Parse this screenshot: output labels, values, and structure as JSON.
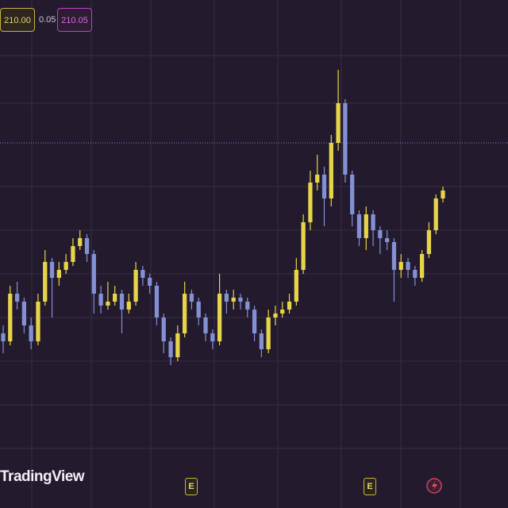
{
  "header": {
    "bid": "210.00",
    "spread": "0.05",
    "ask": "210.05"
  },
  "chart_data": {
    "type": "candlestick",
    "open": [
      186.0,
      185.0,
      191.0,
      190.0,
      187.0,
      185.0,
      190.0,
      195.0,
      193.0,
      194.0,
      195.0,
      197.0,
      198.0,
      196.0,
      191.0,
      189.5,
      190.0,
      191.0,
      189.0,
      190.0,
      194.0,
      193.0,
      192.0,
      188.0,
      185.0,
      183.0,
      186.0,
      191.0,
      190.0,
      188.0,
      186.0,
      185.0,
      191.0,
      190.0,
      190.5,
      190.0,
      189.0,
      186.0,
      184.0,
      188.0,
      188.5,
      189.0,
      190.0,
      194.0,
      200.0,
      205.0,
      206.0,
      203.0,
      210.0,
      215.0,
      206.0,
      201.0,
      198.0,
      201.0,
      199.0,
      198.0,
      197.5,
      194.0,
      195.0,
      194.0,
      193.0,
      196.0,
      199.0,
      203.0
    ],
    "high": [
      187.0,
      192.0,
      192.5,
      190.5,
      188.0,
      191.0,
      196.5,
      195.5,
      195.0,
      196.0,
      198.0,
      199.0,
      198.5,
      196.5,
      192.0,
      192.5,
      192.0,
      191.5,
      191.0,
      195.0,
      194.5,
      193.5,
      192.5,
      188.5,
      185.5,
      187.0,
      192.5,
      191.5,
      190.5,
      188.5,
      186.5,
      193.5,
      191.5,
      191.5,
      191.0,
      190.5,
      189.5,
      186.5,
      189.0,
      189.5,
      190.0,
      191.0,
      195.5,
      201.0,
      206.5,
      208.5,
      207.0,
      211.0,
      219.2,
      215.5,
      206.5,
      201.5,
      202.0,
      201.5,
      199.5,
      199.0,
      198.0,
      196.0,
      195.5,
      194.5,
      196.5,
      200.0,
      203.5,
      204.5
    ],
    "low": [
      183.5,
      184.5,
      189.0,
      186.0,
      184.0,
      184.5,
      189.5,
      188.0,
      192.0,
      193.5,
      194.5,
      196.5,
      195.0,
      188.5,
      188.5,
      189.0,
      189.5,
      186.0,
      188.5,
      189.5,
      192.0,
      191.0,
      187.0,
      183.5,
      182.0,
      182.5,
      185.5,
      189.0,
      187.0,
      185.0,
      184.0,
      184.5,
      188.5,
      189.0,
      189.0,
      188.0,
      185.0,
      183.0,
      183.5,
      187.0,
      188.0,
      188.5,
      189.5,
      193.5,
      199.0,
      204.0,
      199.5,
      202.0,
      209.0,
      205.0,
      199.5,
      197.0,
      196.5,
      197.0,
      196.0,
      196.5,
      190.0,
      193.0,
      193.0,
      192.0,
      192.5,
      195.5,
      198.5,
      202.5
    ],
    "close": [
      185.0,
      191.0,
      190.0,
      187.0,
      185.0,
      190.0,
      195.0,
      193.0,
      194.0,
      195.0,
      197.0,
      198.0,
      196.0,
      191.0,
      189.5,
      190.0,
      191.0,
      189.0,
      190.0,
      194.0,
      193.0,
      192.0,
      188.0,
      185.0,
      183.0,
      186.0,
      191.0,
      190.0,
      188.0,
      186.0,
      185.0,
      191.0,
      190.0,
      190.5,
      190.0,
      189.0,
      186.0,
      184.0,
      188.0,
      188.5,
      189.0,
      190.0,
      194.0,
      200.0,
      205.0,
      206.0,
      203.0,
      210.0,
      215.0,
      206.0,
      201.0,
      198.0,
      201.0,
      199.0,
      198.0,
      197.5,
      194.0,
      195.0,
      194.0,
      193.0,
      196.0,
      199.0,
      203.0,
      204.0
    ],
    "ylim": [
      164,
      228
    ],
    "price_line": 210.0,
    "up_color": "#e6d548",
    "down_color": "#8391d4"
  },
  "footer": {
    "logo": "TradingView",
    "events": [
      "E",
      "E"
    ]
  }
}
